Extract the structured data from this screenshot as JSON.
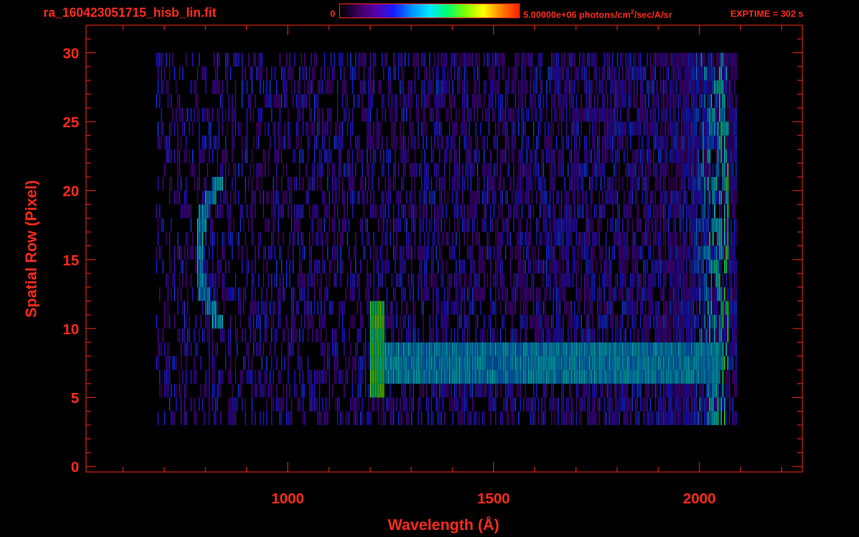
{
  "header": {
    "file_title": "ra_160423051715_hisb_lin.fit",
    "colorbar_min": "0",
    "colorbar_max_value": "5.00000e+06 photons/cm",
    "colorbar_max_exp": "2",
    "colorbar_max_unit": "/sec/A/sr",
    "exptime": "EXPTIME = 302 s"
  },
  "colors": {
    "axis": "#ff2a1a",
    "background": "#000000",
    "colormap": [
      "#000000",
      "#3a005a",
      "#5a00a8",
      "#1a1aff",
      "#0090ff",
      "#00e8ff",
      "#00ff70",
      "#80ff00",
      "#ffff00",
      "#ff8000",
      "#ff2000"
    ]
  },
  "chart_data": {
    "type": "heatmap",
    "title": "ra_160423051715_hisb_lin.fit",
    "xlabel": "Wavelength (Å)",
    "ylabel": "Spatial Row (Pixel)",
    "xlim": [
      510,
      2250
    ],
    "ylim": [
      -0.4,
      32
    ],
    "xticks": [
      1000,
      1500,
      2000
    ],
    "yticks": [
      0,
      5,
      10,
      15,
      20,
      25,
      30
    ],
    "colorbar_range": [
      0,
      5000000
    ],
    "colorbar_unit": "photons/cm^2/sec/A/sr",
    "data_extent": {
      "x": [
        680,
        2090
      ],
      "y": [
        0,
        30
      ]
    },
    "features": [
      {
        "name": "Ly-alpha emission",
        "x": 1216,
        "y_range": [
          5,
          12
        ],
        "level": 0.62
      },
      {
        "name": "continuum band",
        "x_range": [
          1230,
          2050
        ],
        "y_range": [
          6,
          9
        ],
        "level": 0.45
      },
      {
        "name": "arc feature",
        "x_range": [
          780,
          880
        ],
        "y_range": [
          10,
          21
        ],
        "level": 0.45
      },
      {
        "name": "long-wavelength edge",
        "x_range": [
          1900,
          2070
        ],
        "y_range": [
          3,
          30
        ],
        "level": 0.6
      }
    ]
  }
}
